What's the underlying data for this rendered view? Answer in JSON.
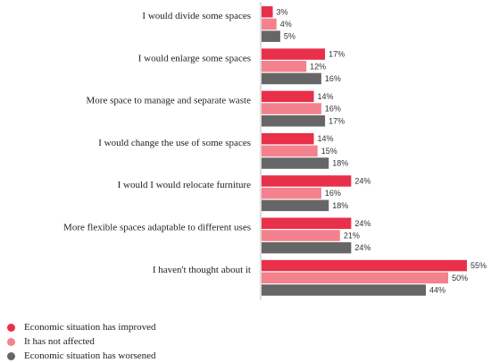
{
  "chart_data": {
    "type": "bar",
    "orientation": "horizontal",
    "categories": [
      "I would divide some spaces",
      "I would enlarge some spaces",
      "More space to manage and separate waste",
      "I would change the use of some spaces",
      "I would I would relocate furniture",
      "More flexible spaces adaptable to different uses",
      "I haven't thought about it"
    ],
    "series": [
      {
        "name": "Economic situation has improved",
        "color": "#e8304a",
        "values": [
          3,
          17,
          14,
          14,
          24,
          24,
          55
        ],
        "labels": [
          "3%",
          "17%",
          "14%",
          "14%",
          "24%",
          "24%",
          "55%"
        ]
      },
      {
        "name": "It has not affected",
        "color": "#f4818d",
        "values": [
          4,
          12,
          16,
          15,
          16,
          21,
          50
        ],
        "labels": [
          "4%",
          "12%",
          "16%",
          "15%",
          "16%",
          "21%",
          "50%"
        ]
      },
      {
        "name": "Economic situation has worsened",
        "color": "#666666",
        "values": [
          5,
          16,
          17,
          18,
          18,
          24,
          44
        ],
        "labels": [
          "5%",
          "16%",
          "17%",
          "18%",
          "18%",
          "24%",
          "44%"
        ]
      }
    ],
    "xlim": [
      0,
      55
    ],
    "grid": false,
    "legend_position": "bottom-left"
  }
}
